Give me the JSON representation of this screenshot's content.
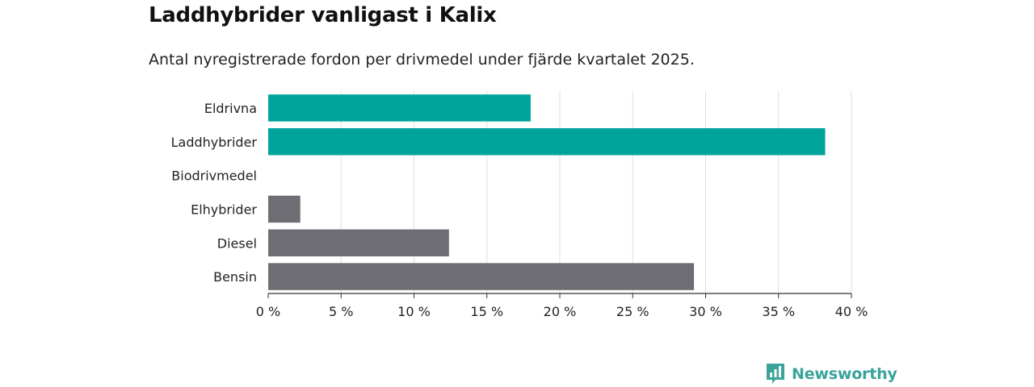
{
  "chart_data": {
    "type": "bar",
    "orientation": "horizontal",
    "title": "Laddhybrider vanligast i Kalix",
    "subtitle": "Antal nyregistrerade fordon per drivmedel under fjärde kvartalet 2025.",
    "categories": [
      "Eldrivna",
      "Laddhybrider",
      "Biodrivmedel",
      "Elhybrider",
      "Diesel",
      "Bensin"
    ],
    "values": [
      18,
      38.2,
      0,
      2.2,
      12.4,
      29.2
    ],
    "unit": "%",
    "xlim": [
      0,
      40
    ],
    "xticks": [
      0,
      5,
      10,
      15,
      20,
      25,
      30,
      35,
      40
    ],
    "tick_labels": [
      "0 %",
      "5 %",
      "10 %",
      "15 %",
      "20 %",
      "25 %",
      "30 %",
      "35 %",
      "40 %"
    ],
    "bar_colors": [
      "#00a49a",
      "#00a49a",
      "#6e6d73",
      "#6e6d73",
      "#6e6d73",
      "#6e6d73"
    ],
    "grid": true,
    "xlabel": "",
    "ylabel": ""
  },
  "brand": {
    "name": "Newsworthy",
    "icon": "newsworthy-logo-icon",
    "color": "#3aa39a"
  }
}
